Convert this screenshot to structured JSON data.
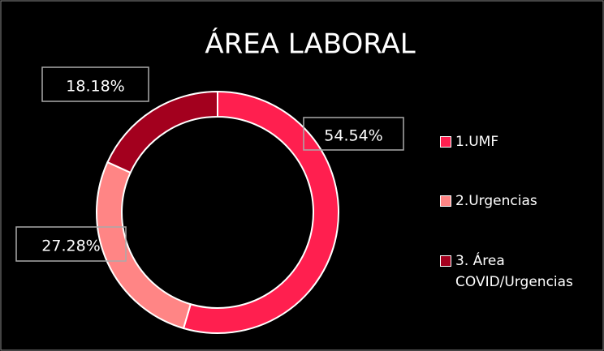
{
  "chart_data": {
    "type": "donut",
    "title": "ÁREA LABORAL",
    "categories": [
      "1.UMF",
      "2.Urgencias",
      "3. Área COVID/Urgencias"
    ],
    "values": [
      54.54,
      27.28,
      18.18
    ],
    "value_labels": [
      "54.54%",
      "27.28%",
      "18.18%"
    ],
    "colors": [
      "#ff1f4f",
      "#ff8585",
      "#a3001e"
    ],
    "legend": "right"
  }
}
